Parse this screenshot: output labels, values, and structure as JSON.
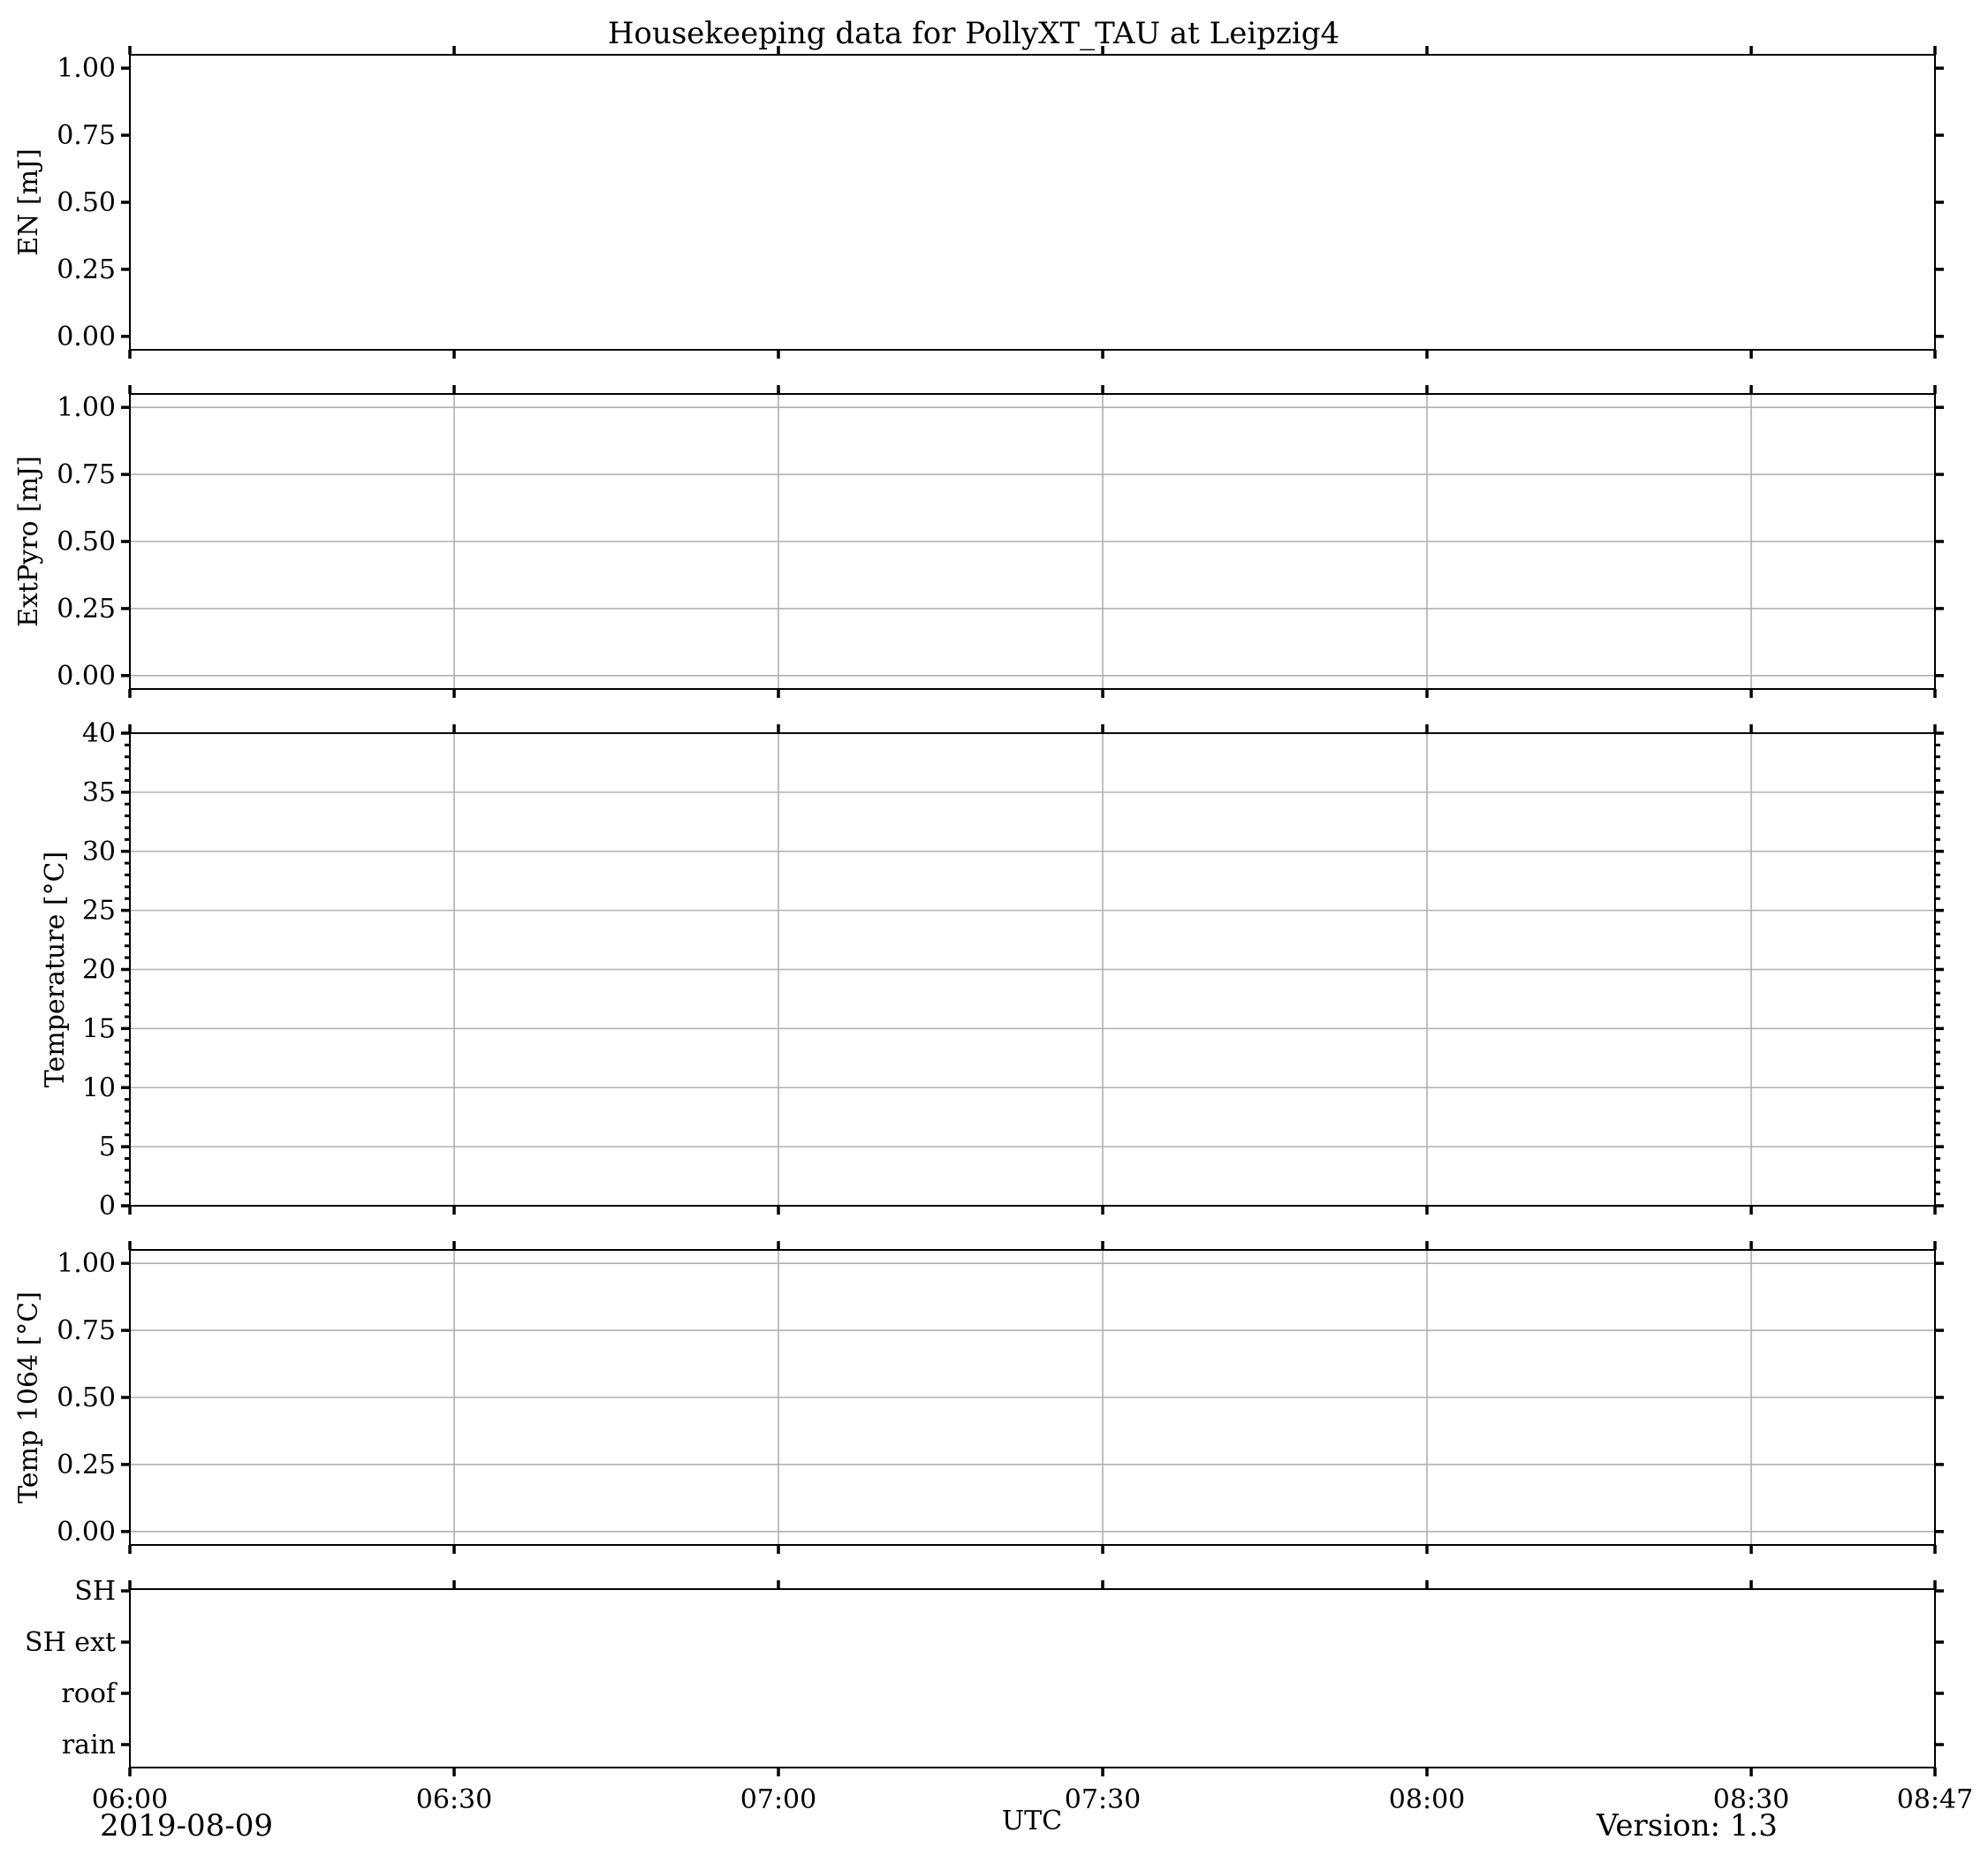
{
  "figure": {
    "title": "Housekeeping data for PollyXT_TAU at Leipzig4",
    "date": "2019-08-09",
    "xlabel": "UTC",
    "version": "Version: 1.3",
    "background": "#ffffff",
    "grid_color": "#b0b0b0"
  },
  "chart_data": [
    {
      "type": "line",
      "ylabel": "EN [mJ]",
      "ylim": [
        -0.05,
        1.05
      ],
      "yticks": [
        "0.00",
        "0.25",
        "0.50",
        "0.75",
        "1.00"
      ],
      "ytick_values": [
        0,
        0.25,
        0.5,
        0.75,
        1.0
      ],
      "grid": false,
      "series": []
    },
    {
      "type": "line",
      "ylabel": "ExtPyro [mJ]",
      "ylim": [
        -0.05,
        1.05
      ],
      "yticks": [
        "0.00",
        "0.25",
        "0.50",
        "0.75",
        "1.00"
      ],
      "ytick_values": [
        0,
        0.25,
        0.5,
        0.75,
        1.0
      ],
      "grid": true,
      "series": []
    },
    {
      "type": "line",
      "ylabel": "Temperature [°C]",
      "ylim": [
        0,
        40
      ],
      "yticks": [
        "0",
        "5",
        "10",
        "15",
        "20",
        "25",
        "30",
        "35",
        "40"
      ],
      "ytick_values": [
        0,
        5,
        10,
        15,
        20,
        25,
        30,
        35,
        40
      ],
      "minor_ytick_step": 1,
      "grid": true,
      "series": []
    },
    {
      "type": "line",
      "ylabel": "Temp 1064 [°C]",
      "ylim": [
        -0.05,
        1.05
      ],
      "yticks": [
        "0.00",
        "0.25",
        "0.50",
        "0.75",
        "1.00"
      ],
      "ytick_values": [
        0,
        0.25,
        0.5,
        0.75,
        1.0
      ],
      "grid": true,
      "series": []
    },
    {
      "type": "heatmap",
      "ylabel": "",
      "yticks": [
        "SH",
        "SH ext",
        "roof",
        "rain"
      ],
      "grid": false,
      "series": []
    }
  ],
  "xaxis": {
    "xlim": [
      "06:00",
      "08:47"
    ],
    "xlim_minutes": [
      360,
      527
    ],
    "ticks": [
      "06:00",
      "06:30",
      "07:00",
      "07:30",
      "08:00",
      "08:30",
      "08:47"
    ],
    "tick_minutes": [
      360,
      390,
      420,
      450,
      480,
      510,
      527
    ]
  }
}
